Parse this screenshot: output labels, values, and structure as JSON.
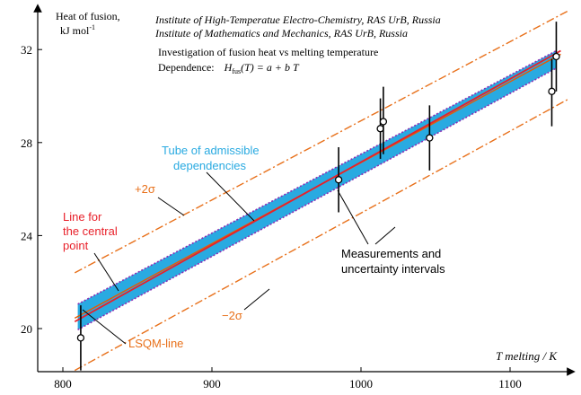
{
  "chart_data": {
    "type": "scatter",
    "title": "Investigation of fusion heat vs melting temperature",
    "institutes": [
      "Institute of High-Temperatue Electro-Chemistry, RAS UrB, Russia",
      "Institute of Mathematics and Mechanics, RAS UrB, Russia"
    ],
    "dependence": {
      "label": "Dependence:",
      "formula_lhs": "H",
      "formula_sub": "fus",
      "formula_rhs": "(T) = a + b T"
    },
    "ylabel": "Heat of fusion,",
    "ylabel_unit": "kJ mol",
    "ylabel_unit_sup": "-1",
    "xlabel": "T melting / K",
    "xlim": [
      790,
      1140
    ],
    "ylim": [
      18.1,
      33.6
    ],
    "xticks": [
      800,
      900,
      1000,
      1100
    ],
    "yticks": [
      20,
      24,
      28,
      32
    ],
    "x_tick_labels": [
      "800",
      "900",
      "1000",
      "1100"
    ],
    "y_tick_labels": [
      "20",
      "24",
      "28",
      "32"
    ],
    "measurements": [
      {
        "x": 812,
        "y": 19.6,
        "err_low": 18.2,
        "err_high": 21.0
      },
      {
        "x": 985,
        "y": 26.4,
        "err_low": 25.0,
        "err_high": 27.8
      },
      {
        "x": 1013,
        "y": 28.6,
        "err_low": 27.3,
        "err_high": 29.9
      },
      {
        "x": 1015,
        "y": 28.9,
        "err_low": 27.5,
        "err_high": 30.4
      },
      {
        "x": 1046,
        "y": 28.2,
        "err_low": 26.8,
        "err_high": 29.6
      },
      {
        "x": 1128,
        "y": 30.2,
        "err_low": 28.7,
        "err_high": 31.6
      },
      {
        "x": 1131,
        "y": 31.7,
        "err_low": 30.2,
        "err_high": 33.2
      }
    ],
    "tube": {
      "upper": [
        [
          810,
          21.05
        ],
        [
          1131,
          31.95
        ]
      ],
      "lower": [
        [
          810,
          19.95
        ],
        [
          1131,
          31.2
        ]
      ]
    },
    "central_line": [
      [
        808,
        20.3
      ],
      [
        1134,
        31.95
      ]
    ],
    "lsqm_line": [
      [
        808,
        20.45
      ],
      [
        1134,
        31.8
      ]
    ],
    "plus_2sigma_line": [
      [
        808,
        22.4
      ],
      [
        1140,
        33.7
      ]
    ],
    "minus_2sigma_line": [
      [
        808,
        18.2
      ],
      [
        1140,
        29.9
      ]
    ],
    "colors": {
      "tube_fill": "#29aae1",
      "tube_border": "#8b2fb5",
      "central_line": "#e8202a",
      "lsqm_line": "#e85a00",
      "sigma_lines": "#e8701a",
      "points": "#000000",
      "label_red": "#e8202a",
      "label_orange": "#e8701a",
      "label_cyan": "#29aae1"
    },
    "annotations": {
      "tube_label": [
        "Tube of admissible",
        "dependencies"
      ],
      "plus_sigma": "+2σ",
      "minus_sigma": "−2σ",
      "central_label": [
        "Line for",
        "the central",
        "point"
      ],
      "lsqm_label": "LSQM-line",
      "measurements_label": [
        "Measurements and",
        "uncertainty intervals"
      ]
    }
  }
}
